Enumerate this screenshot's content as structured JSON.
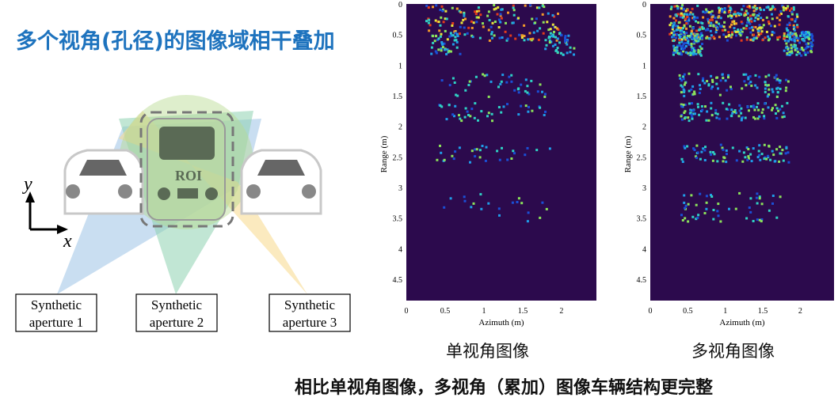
{
  "title": "多个视角(孔径)的图像域相干叠加",
  "diagram": {
    "axis_y_label": "y",
    "axis_x_label": "x",
    "roi_label": "ROI",
    "apertures": [
      {
        "line1": "Synthetic",
        "line2": "aperture 1"
      },
      {
        "line1": "Synthetic",
        "line2": "aperture 2"
      },
      {
        "line1": "Synthetic",
        "line2": "aperture 3"
      }
    ],
    "colors": {
      "beam1": "#9cc3e6",
      "beam2": "#8ed1b0",
      "beam3": "#f8d98a",
      "car": "#c8c8c8",
      "roi_border": "#777777"
    }
  },
  "panels": [
    {
      "caption": "单视角图像",
      "ylabel": "Range (m)",
      "xlabel": "Azimuth (m)",
      "yticks": [
        "0",
        "0.5",
        "1",
        "1.5",
        "2",
        "2.5",
        "3",
        "3.5",
        "4",
        "4.5"
      ],
      "xticks": [
        "0",
        "0.5",
        "1",
        "1.5",
        "2"
      ],
      "background": "#2c0a4d",
      "colormap": "jet"
    },
    {
      "caption": "多视角图像",
      "ylabel": "Range (m)",
      "xlabel": "Azimuth (m)",
      "yticks": [
        "0",
        "0.5",
        "1",
        "1.5",
        "2",
        "2.5",
        "3",
        "3.5",
        "4",
        "4.5"
      ],
      "xticks": [
        "0",
        "0.5",
        "1",
        "1.5",
        "2"
      ],
      "background": "#2c0a4d",
      "colormap": "jet"
    }
  ],
  "conclusion": "相比单视角图像，多视角（累加）图像车辆结构更完整"
}
